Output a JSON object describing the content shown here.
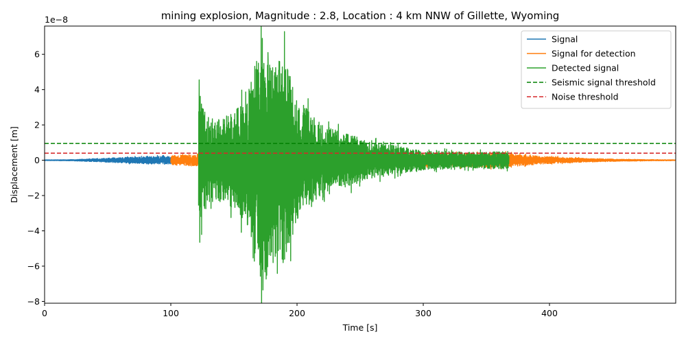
{
  "chart_data": {
    "type": "line",
    "title": "mining explosion, Magnitude : 2.8, Location : 4 km NNW of Gillette, Wyoming",
    "xlabel": "Time [s]",
    "ylabel": "Displacement [m]",
    "offset_text": "1e−8",
    "xlim": [
      0,
      500
    ],
    "ylim": [
      -8.1,
      7.6
    ],
    "y_scale_factor": 1e-08,
    "xticks": [
      0,
      100,
      200,
      300,
      400
    ],
    "xtick_labels": [
      "0",
      "100",
      "200",
      "300",
      "400"
    ],
    "yticks": [
      -8,
      -6,
      -4,
      -2,
      0,
      2,
      4,
      6
    ],
    "ytick_labels": [
      "−8",
      "−6",
      "−4",
      "−2",
      "0",
      "2",
      "4",
      "6"
    ],
    "grid": false,
    "legend_position": "top-right",
    "series": [
      {
        "name": "Signal",
        "color": "#1f77b4",
        "style": "solid",
        "x_range": [
          0,
          100
        ],
        "envelope": [
          [
            0,
            0.02
          ],
          [
            20,
            0.03
          ],
          [
            40,
            0.08
          ],
          [
            60,
            0.15
          ],
          [
            80,
            0.2
          ],
          [
            100,
            0.22
          ]
        ]
      },
      {
        "name": "Signal for detection",
        "color": "#ff7f0e",
        "style": "solid",
        "x_range": [
          100,
          500
        ],
        "envelope": [
          [
            100,
            0.25
          ],
          [
            110,
            0.3
          ],
          [
            122,
            0.35
          ],
          [
            300,
            0.35
          ],
          [
            365,
            0.4
          ],
          [
            380,
            0.3
          ],
          [
            400,
            0.2
          ],
          [
            430,
            0.1
          ],
          [
            460,
            0.05
          ],
          [
            500,
            0.02
          ]
        ]
      },
      {
        "name": "Detected signal",
        "color": "#2ca02c",
        "style": "solid",
        "x_range": [
          122,
          368
        ],
        "envelope": [
          [
            122,
            4.5
          ],
          [
            125,
            3.0
          ],
          [
            135,
            2.2
          ],
          [
            150,
            2.8
          ],
          [
            160,
            3.5
          ],
          [
            170,
            6.5
          ],
          [
            175,
            7.0
          ],
          [
            180,
            5.5
          ],
          [
            190,
            5.8
          ],
          [
            200,
            3.5
          ],
          [
            220,
            2.0
          ],
          [
            240,
            1.5
          ],
          [
            260,
            1.0
          ],
          [
            280,
            0.8
          ],
          [
            300,
            0.55
          ],
          [
            340,
            0.45
          ],
          [
            368,
            0.5
          ]
        ],
        "peaks": [
          [
            122.5,
            4.55
          ],
          [
            123,
            -4.65
          ],
          [
            172.5,
            6.9
          ],
          [
            173,
            -7.35
          ],
          [
            177,
            6.1
          ],
          [
            181,
            -5.8
          ],
          [
            189,
            -5.8
          ],
          [
            168,
            5.6
          ]
        ]
      },
      {
        "name": "Seismic signal threshold",
        "color": "#008000",
        "style": "dashed",
        "y": 0.95
      },
      {
        "name": "Noise threshold",
        "color": "#d62728",
        "style": "dashed",
        "y": 0.4
      }
    ]
  }
}
